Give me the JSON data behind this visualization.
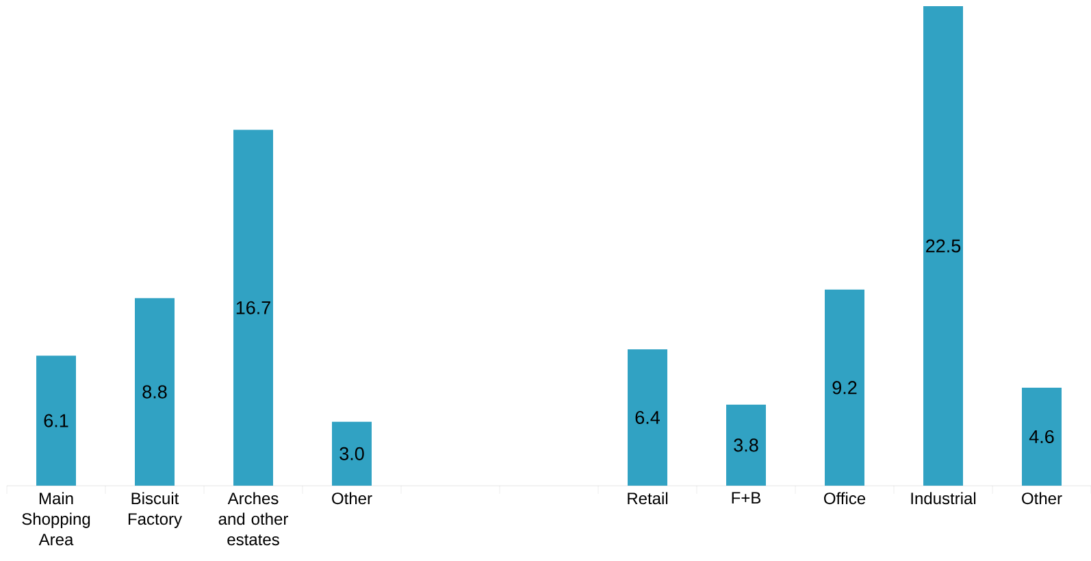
{
  "chart_data": {
    "type": "bar",
    "categories": [
      "Main Shopping Area",
      "Biscuit Factory",
      "Arches and other estates",
      "Other",
      null,
      null,
      "Retail",
      "F+B",
      "Office",
      "Industrial",
      "Other"
    ],
    "values": [
      6.1,
      8.8,
      16.7,
      3.0,
      null,
      null,
      6.4,
      3.8,
      9.2,
      22.5,
      4.6
    ],
    "color": "#31a2c3",
    "value_labels": [
      "6.1",
      "8.8",
      "16.7",
      "3.0",
      null,
      null,
      "6.4",
      "3.8",
      "9.2",
      "22.5",
      "4.6"
    ]
  }
}
